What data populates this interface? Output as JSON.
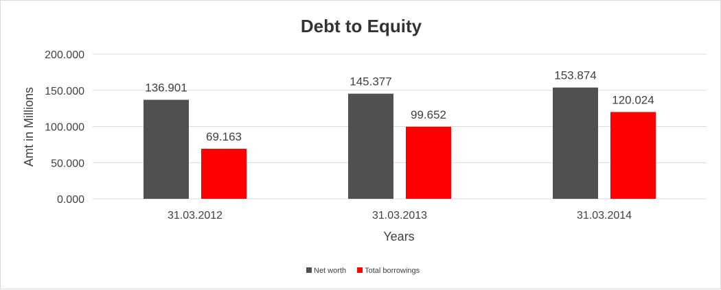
{
  "chart_data": {
    "type": "bar",
    "title": "Debt to Equity",
    "xlabel": "Years",
    "ylabel": "Amt in Millions",
    "categories": [
      "31.03.2012",
      "31.03.2013",
      "31.03.2014"
    ],
    "series": [
      {
        "name": "Net worth",
        "color": "#505050",
        "values": [
          136.901,
          145.377,
          153.874
        ]
      },
      {
        "name": "Total borrowings",
        "color": "#ff0000",
        "values": [
          69.163,
          99.652,
          120.024
        ]
      }
    ],
    "ylim": [
      0,
      200
    ],
    "yticks": [
      "0.000",
      "50.000",
      "100.000",
      "150.000",
      "200.000"
    ],
    "data_labels": [
      [
        "136.901",
        "145.377",
        "153.874"
      ],
      [
        "69.163",
        "99.652",
        "120.024"
      ]
    ],
    "grid": true,
    "legend_position": "bottom"
  }
}
